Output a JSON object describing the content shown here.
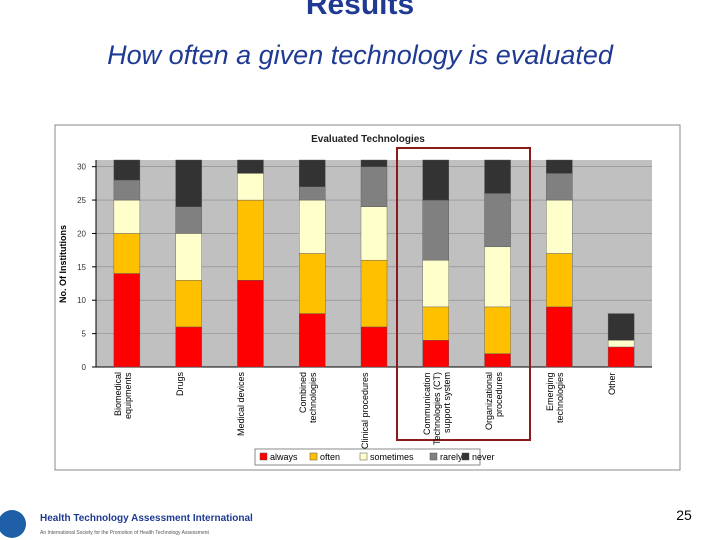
{
  "slide": {
    "title": "Results",
    "subtitle": "How often a given technology is evaluated",
    "page_number": "25",
    "footer": {
      "organization": "Health Technology Assessment International",
      "tagline": "An International Society for the Promotion of Health Technology Assessment"
    }
  },
  "chart_data": {
    "type": "stacked_bar",
    "title": "Evaluated Technologies",
    "y_label": "No. Of Institutions",
    "categories": [
      "Biomedical equipments",
      "Drugs",
      "Medical devices",
      "Combined technologies",
      "Clinical procedures",
      "Communication Technologies (CT) support system",
      "Organizational procedures",
      "Emerging technologies",
      "Other"
    ],
    "series": [
      {
        "name": "always",
        "color": "#ff0000",
        "values": [
          14,
          6,
          13,
          8,
          6,
          4,
          2,
          9,
          3
        ]
      },
      {
        "name": "often",
        "color": "#ffc000",
        "values": [
          6,
          7,
          12,
          9,
          10,
          5,
          7,
          8,
          0
        ]
      },
      {
        "name": "sometimes",
        "color": "#ffffcc",
        "values": [
          5,
          7,
          4,
          8,
          8,
          7,
          9,
          8,
          1
        ]
      },
      {
        "name": "rarely",
        "color": "#808080",
        "values": [
          3,
          4,
          0,
          2,
          6,
          9,
          8,
          4,
          0
        ]
      },
      {
        "name": "never",
        "color": "#333333",
        "values": [
          3,
          7,
          2,
          4,
          1,
          6,
          5,
          2,
          4
        ]
      }
    ],
    "ylim": [
      0,
      31
    ],
    "yticks": [
      0,
      5,
      10,
      15,
      20,
      25,
      30
    ],
    "grid": true,
    "legend": "bottom"
  }
}
